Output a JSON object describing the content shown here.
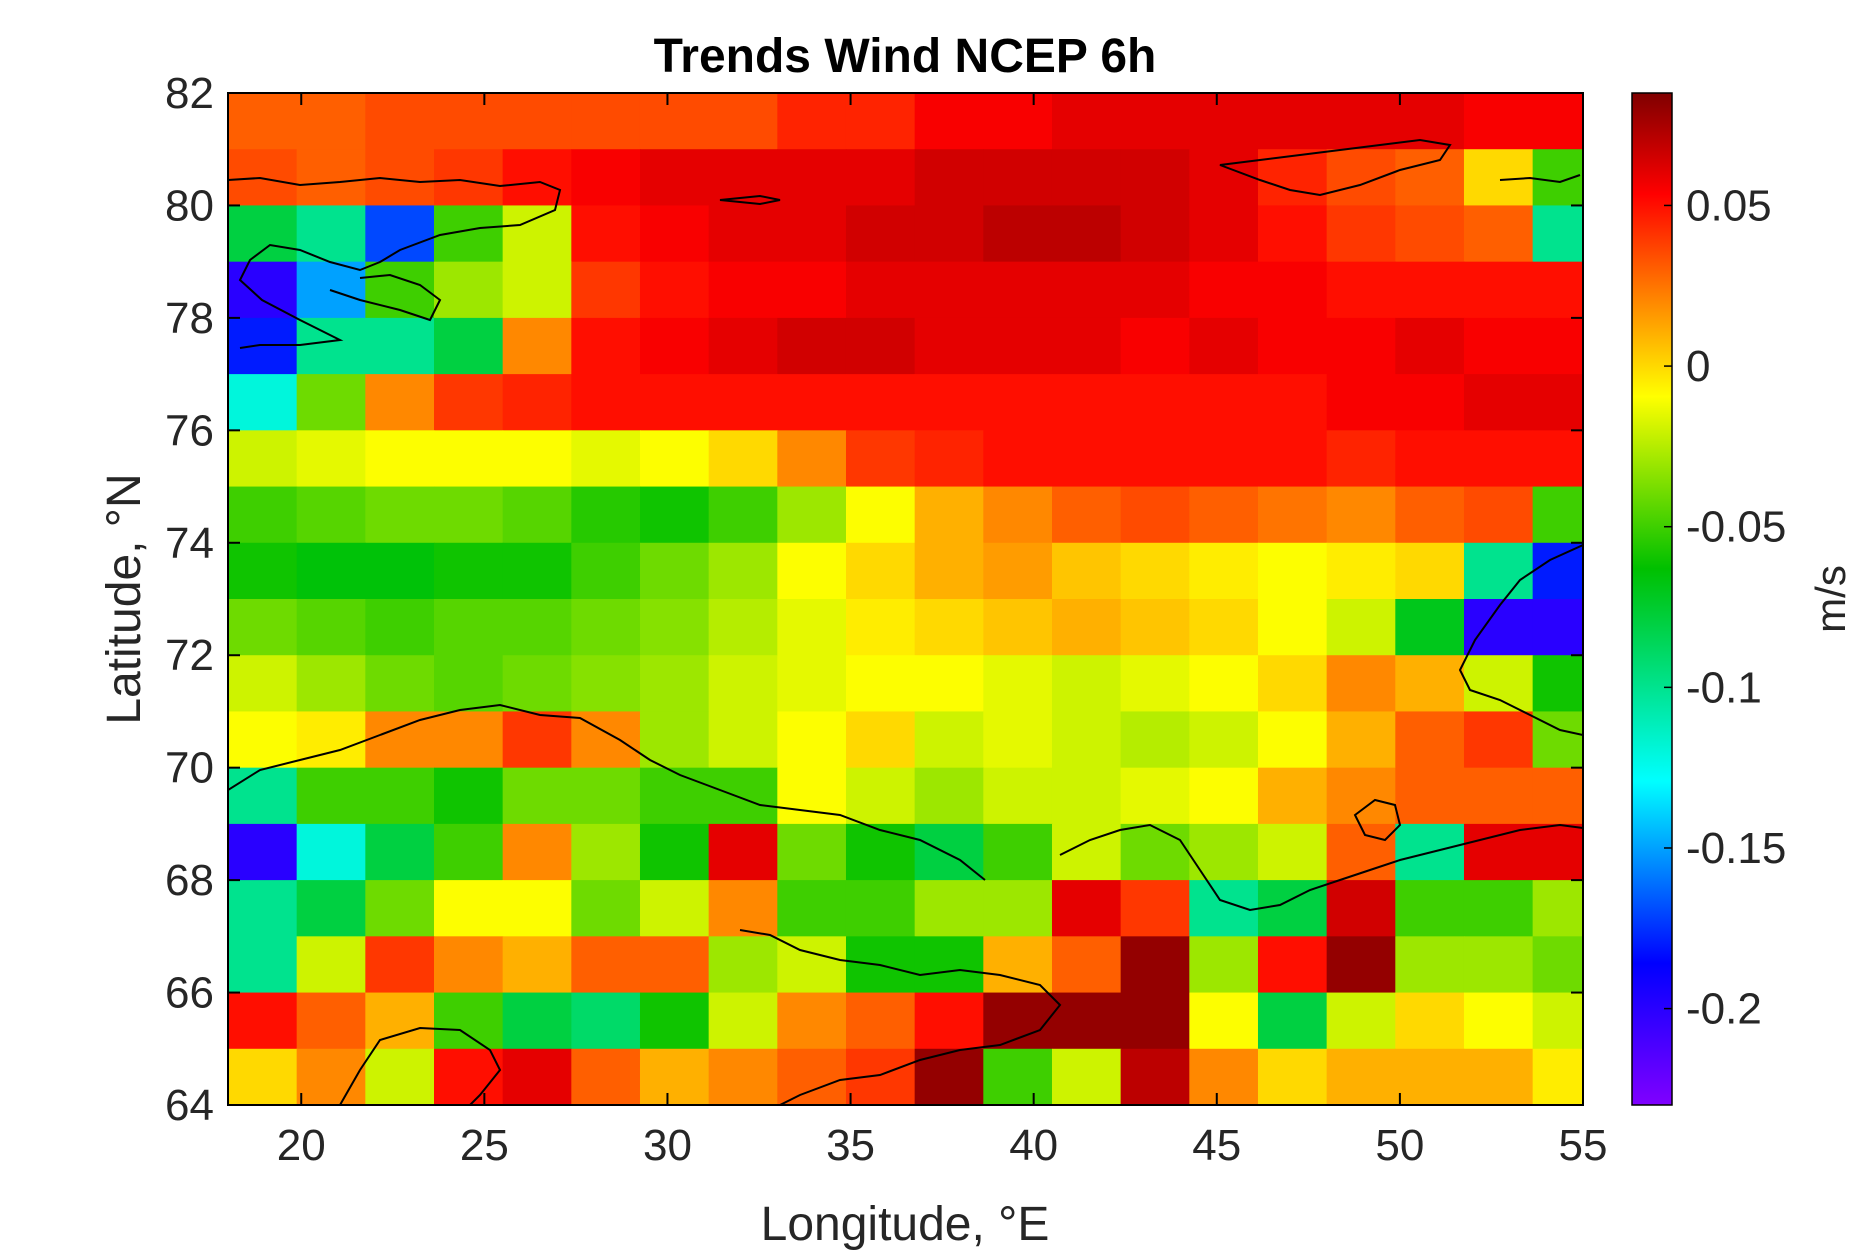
{
  "chart_data": {
    "type": "heatmap",
    "title": "Trends Wind NCEP 6h",
    "xlabel": "Longitude, °E",
    "ylabel": "Latitude, °N",
    "xlim": [
      18,
      55
    ],
    "ylim": [
      64,
      82
    ],
    "xticks": [
      20,
      25,
      30,
      35,
      40,
      45,
      50,
      55
    ],
    "yticks": [
      64,
      66,
      68,
      70,
      72,
      74,
      76,
      78,
      80,
      82
    ],
    "colorbar": {
      "label": "m/s",
      "clim": [
        -0.23,
        0.085
      ],
      "ticks": [
        -0.2,
        -0.15,
        -0.1,
        -0.05,
        0,
        0.05
      ],
      "colormap": [
        "#8000ff",
        "#0000ff",
        "#00ffff",
        "#00c000",
        "#ffff00",
        "#ff8000",
        "#ff0000",
        "#800000"
      ]
    },
    "grid": {
      "lon_start": 18,
      "lon_step": 1.875,
      "lat_start": 82,
      "lat_step": -1,
      "rows": [
        [
          0.03,
          0.03,
          0.035,
          0.035,
          0.035,
          0.035,
          0.035,
          0.035,
          0.045,
          0.045,
          0.055,
          0.055,
          0.06,
          0.06,
          0.06,
          0.06,
          0.06,
          0.06,
          0.055,
          0.055
        ],
        [
          0.035,
          0.03,
          0.035,
          0.04,
          0.05,
          0.055,
          0.06,
          0.06,
          0.06,
          0.06,
          0.065,
          0.065,
          0.065,
          0.065,
          0.06,
          0.045,
          0.035,
          0.03,
          0.0,
          -0.05
        ],
        [
          -0.08,
          -0.1,
          -0.17,
          -0.05,
          -0.02,
          0.05,
          0.055,
          0.06,
          0.06,
          0.065,
          0.065,
          0.07,
          0.07,
          0.065,
          0.06,
          0.05,
          0.04,
          0.035,
          0.03,
          -0.1
        ],
        [
          -0.2,
          -0.15,
          -0.05,
          -0.03,
          -0.02,
          0.04,
          0.05,
          0.055,
          0.055,
          0.06,
          0.06,
          0.06,
          0.06,
          0.06,
          0.055,
          0.055,
          0.05,
          0.05,
          0.05,
          0.05
        ],
        [
          -0.18,
          -0.1,
          -0.1,
          -0.08,
          0.02,
          0.05,
          0.055,
          0.06,
          0.065,
          0.065,
          0.06,
          0.06,
          0.06,
          0.055,
          0.06,
          0.055,
          0.055,
          0.06,
          0.055,
          0.055
        ],
        [
          -0.12,
          -0.04,
          0.02,
          0.04,
          0.045,
          0.05,
          0.05,
          0.05,
          0.05,
          0.05,
          0.05,
          0.05,
          0.05,
          0.05,
          0.05,
          0.05,
          0.055,
          0.055,
          0.06,
          0.06
        ],
        [
          -0.02,
          -0.015,
          -0.01,
          -0.01,
          -0.01,
          -0.015,
          -0.01,
          0.0,
          0.02,
          0.04,
          0.045,
          0.05,
          0.05,
          0.05,
          0.05,
          0.05,
          0.045,
          0.05,
          0.05,
          0.05
        ],
        [
          -0.05,
          -0.045,
          -0.04,
          -0.04,
          -0.045,
          -0.055,
          -0.06,
          -0.05,
          -0.03,
          -0.01,
          0.01,
          0.02,
          0.03,
          0.035,
          0.03,
          0.025,
          0.02,
          0.03,
          0.035,
          -0.05
        ],
        [
          -0.06,
          -0.065,
          -0.065,
          -0.06,
          -0.06,
          -0.05,
          -0.04,
          -0.03,
          -0.01,
          0.0,
          0.01,
          0.015,
          0.005,
          0.0,
          -0.005,
          -0.01,
          -0.005,
          0.0,
          -0.1,
          -0.18
        ],
        [
          -0.04,
          -0.045,
          -0.05,
          -0.045,
          -0.045,
          -0.04,
          -0.035,
          -0.025,
          -0.015,
          -0.005,
          0.0,
          0.005,
          0.01,
          0.005,
          0.0,
          -0.01,
          -0.02,
          -0.07,
          -0.2,
          -0.2
        ],
        [
          -0.02,
          -0.03,
          -0.04,
          -0.045,
          -0.04,
          -0.035,
          -0.03,
          -0.02,
          -0.015,
          -0.01,
          -0.01,
          -0.015,
          -0.02,
          -0.015,
          -0.01,
          0.0,
          0.02,
          0.01,
          -0.02,
          -0.06
        ],
        [
          -0.01,
          -0.005,
          0.02,
          0.02,
          0.04,
          0.02,
          -0.03,
          -0.02,
          -0.01,
          0.0,
          -0.02,
          -0.015,
          -0.02,
          -0.025,
          -0.02,
          -0.01,
          0.01,
          0.03,
          0.04,
          -0.04
        ],
        [
          -0.1,
          -0.05,
          -0.05,
          -0.06,
          -0.04,
          -0.04,
          -0.05,
          -0.05,
          -0.01,
          -0.02,
          -0.03,
          -0.02,
          -0.02,
          -0.015,
          -0.01,
          0.01,
          0.02,
          0.03,
          0.03,
          0.03
        ],
        [
          -0.2,
          -0.12,
          -0.08,
          -0.05,
          0.02,
          -0.03,
          -0.06,
          0.06,
          -0.04,
          -0.06,
          -0.08,
          -0.05,
          -0.02,
          -0.04,
          -0.03,
          -0.02,
          0.03,
          -0.1,
          0.06,
          0.06
        ],
        [
          -0.1,
          -0.08,
          -0.04,
          -0.01,
          -0.01,
          -0.04,
          -0.02,
          0.02,
          -0.05,
          -0.05,
          -0.03,
          -0.03,
          0.06,
          0.04,
          -0.1,
          -0.08,
          0.065,
          -0.05,
          -0.05,
          -0.03
        ],
        [
          -0.1,
          -0.02,
          0.04,
          0.02,
          0.01,
          0.03,
          0.03,
          -0.03,
          -0.02,
          -0.06,
          -0.06,
          0.01,
          0.03,
          0.08,
          -0.03,
          0.05,
          0.08,
          -0.03,
          -0.03,
          -0.04
        ],
        [
          0.05,
          0.03,
          0.01,
          -0.05,
          -0.08,
          -0.09,
          -0.06,
          -0.02,
          0.02,
          0.03,
          0.05,
          0.08,
          0.08,
          0.08,
          -0.01,
          -0.08,
          -0.02,
          0.0,
          -0.01,
          -0.02
        ],
        [
          0.0,
          0.02,
          -0.02,
          0.05,
          0.06,
          0.03,
          0.01,
          0.02,
          0.03,
          0.04,
          0.08,
          -0.05,
          -0.02,
          0.07,
          0.02,
          0.0,
          0.01,
          0.01,
          0.01,
          -0.005
        ]
      ]
    }
  }
}
